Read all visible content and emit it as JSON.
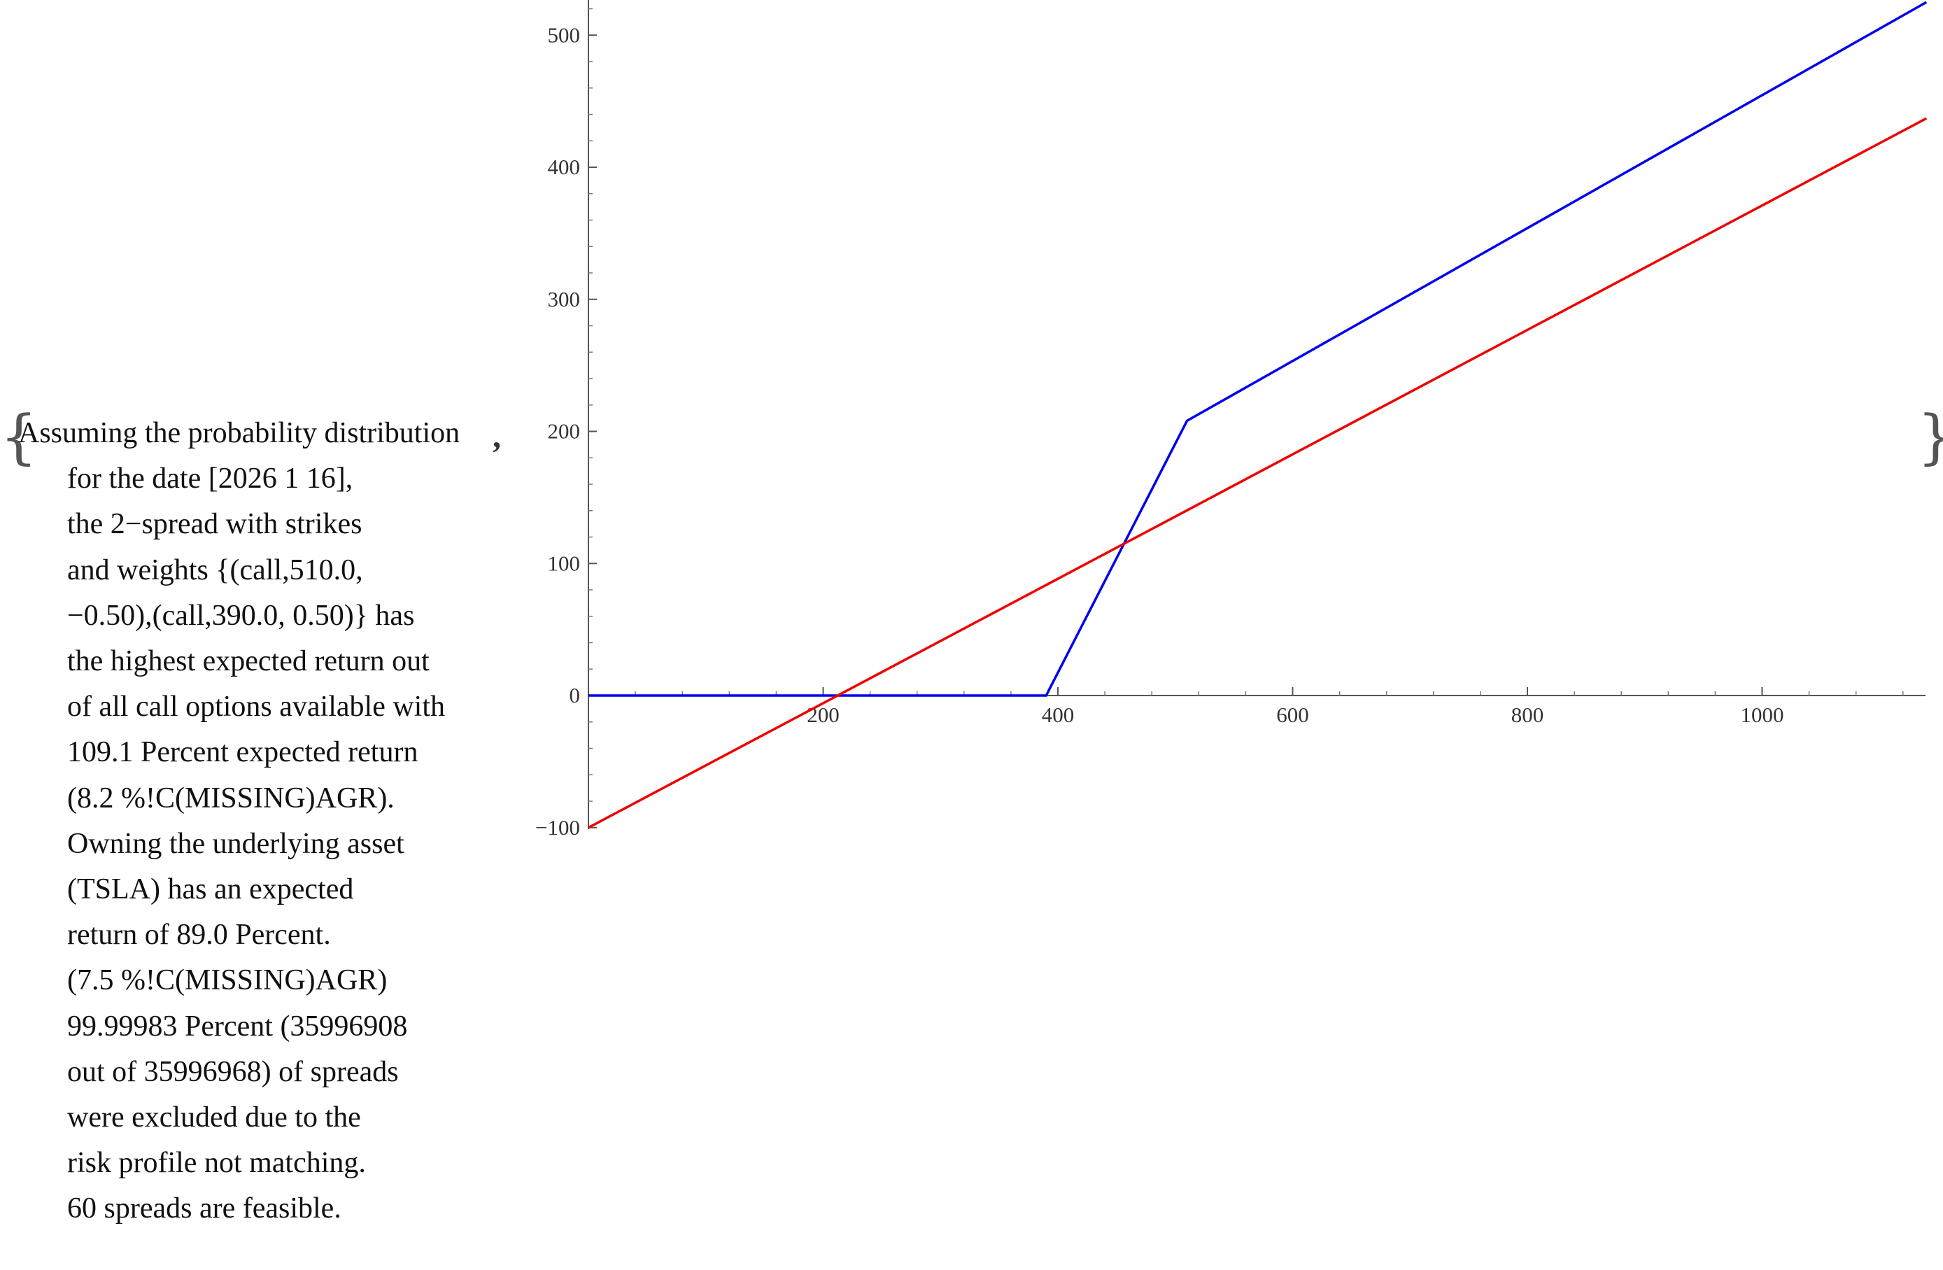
{
  "text": {
    "lines": [
      "Assuming the probability distribution",
      "for the date [2026 1 16],",
      "the 2−spread with strikes",
      "and weights {(call,510.0,",
      "−0.50),(call,390.0, 0.50)} has",
      "the highest expected return out",
      "of all call options available with",
      "109.1 Percent expected return",
      "(8.2 %!C(MISSING)AGR).",
      "Owning the underlying asset",
      "(TSLA) has an expected",
      "return of 89.0 Percent.",
      "(7.5 %!C(MISSING)AGR)",
      "99.99983 Percent (35996908",
      "out of 35996968) of spreads",
      "were excluded due to the",
      "risk profile not matching.",
      "60 spreads are feasible."
    ],
    "comma": ",",
    "brace_open": "{",
    "brace_close": "}"
  },
  "chart_data": {
    "type": "line",
    "title": "",
    "xlabel": "",
    "ylabel": "",
    "xlim": [
      0,
      1140
    ],
    "ylim": [
      -100,
      525
    ],
    "x_ticks": [
      200,
      400,
      600,
      800,
      1000
    ],
    "x_tick_labels": [
      "200",
      "400",
      "600",
      "800",
      "1000"
    ],
    "y_ticks": [
      -100,
      0,
      100,
      200,
      300,
      400,
      500
    ],
    "y_tick_labels": [
      "−100",
      "0",
      "100",
      "200",
      "300",
      "400",
      "500"
    ],
    "grid": false,
    "series": [
      {
        "color": "#0000ee",
        "points": [
          [
            0,
            0
          ],
          [
            390,
            0
          ],
          [
            510,
            208
          ],
          [
            1140,
            525
          ]
        ]
      },
      {
        "color": "#ee0000",
        "points": [
          [
            0,
            -100
          ],
          [
            1140,
            437
          ]
        ]
      }
    ]
  }
}
